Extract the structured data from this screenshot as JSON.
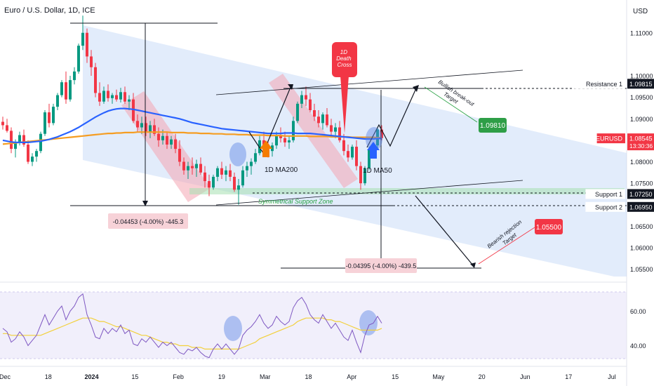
{
  "header": {
    "title": "Euro / U.S. Dollar, 1D, ICE",
    "currency": "USD"
  },
  "chart_data": {
    "type": "candlestick",
    "price_axis": {
      "ticks": [
        "1.11000",
        "1.10000",
        "1.09500",
        "1.09000",
        "1.08000",
        "1.07500",
        "1.06500",
        "1.06000",
        "1.05500"
      ],
      "range": [
        1.052,
        1.116
      ]
    },
    "rsi_axis": {
      "ticks": [
        "60.00",
        "40.00"
      ],
      "range": [
        28,
        76
      ]
    },
    "time_axis": {
      "labels": [
        "Dec",
        "18",
        "2024",
        "15",
        "Feb",
        "19",
        "Mar",
        "18",
        "Apr",
        "15",
        "May",
        "20",
        "Jun",
        "17",
        "Jul"
      ]
    },
    "price_labels": [
      {
        "label": "Resistance 1",
        "value": "1.09815",
        "style": "dark"
      },
      {
        "label": "EURUSD",
        "value": "1.08545",
        "extra": "13:30:36",
        "style": "red"
      },
      {
        "label": "Support 1",
        "value": "1.07250",
        "style": "dark"
      },
      {
        "label": "Support 2",
        "value": "1.06950",
        "style": "dark"
      }
    ],
    "annotations": {
      "death_cross": [
        "1D",
        "Death",
        "Cross"
      ],
      "ma200": "1D MA200",
      "ma50": "1D MA50",
      "support_zone": "Symmetrical Support Zone",
      "bullish_target_text": [
        "Bullish break-out",
        "Target"
      ],
      "bullish_target_value": "1.09810",
      "bearish_target_text": [
        "Bearish rejection",
        "Target"
      ],
      "bearish_target_value": "1.05500",
      "measure_left": "-0.04453 (-4.00%) -445.3",
      "measure_right": "-0.04395 (-4.00%) -439.5"
    },
    "series": {
      "candles_ohlc": [
        [
          1.0893,
          1.0905,
          1.0875,
          1.0885
        ],
        [
          1.0885,
          1.09,
          1.0868,
          1.0872
        ],
        [
          1.0872,
          1.088,
          1.082,
          1.083
        ],
        [
          1.083,
          1.0852,
          1.081,
          1.0845
        ],
        [
          1.0845,
          1.087,
          1.0838,
          1.0862
        ],
        [
          1.0862,
          1.0875,
          1.0835,
          1.084
        ],
        [
          1.084,
          1.085,
          1.0795,
          1.08
        ],
        [
          1.08,
          1.082,
          1.079,
          1.0812
        ],
        [
          1.0812,
          1.083,
          1.08,
          1.0825
        ],
        [
          1.0825,
          1.087,
          1.082,
          1.0865
        ],
        [
          1.0865,
          1.092,
          1.086,
          1.0915
        ],
        [
          1.0915,
          1.0935,
          1.088,
          1.089
        ],
        [
          1.089,
          1.0935,
          1.0885,
          1.0928
        ],
        [
          1.0928,
          1.096,
          1.092,
          1.0955
        ],
        [
          1.0955,
          1.099,
          1.095,
          1.0985
        ],
        [
          1.0985,
          1.101,
          1.0935,
          1.0945
        ],
        [
          1.0945,
          1.1,
          1.094,
          1.099
        ],
        [
          1.099,
          1.102,
          1.098,
          1.101
        ],
        [
          1.101,
          1.1075,
          1.1005,
          1.107
        ],
        [
          1.107,
          1.114,
          1.106,
          1.11
        ],
        [
          1.11,
          1.111,
          1.103,
          1.1045
        ],
        [
          1.1045,
          1.106,
          1.1,
          1.102
        ],
        [
          1.102,
          1.103,
          1.095,
          1.096
        ],
        [
          1.096,
          1.0985,
          1.093,
          1.094
        ],
        [
          1.094,
          1.0975,
          1.0935,
          1.0965
        ],
        [
          1.0965,
          1.098,
          1.094,
          1.0948
        ],
        [
          1.0948,
          1.096,
          1.0935,
          1.0955
        ],
        [
          1.0955,
          1.0968,
          1.094,
          1.0945
        ],
        [
          1.0945,
          1.0972,
          1.0938,
          1.0962
        ],
        [
          1.0962,
          1.0975,
          1.0935,
          1.094
        ],
        [
          1.094,
          1.0955,
          1.092,
          1.0945
        ],
        [
          1.0945,
          1.096,
          1.089,
          1.0895
        ],
        [
          1.0895,
          1.091,
          1.087,
          1.088
        ],
        [
          1.088,
          1.0905,
          1.0865,
          1.089
        ],
        [
          1.089,
          1.0905,
          1.086,
          1.087
        ],
        [
          1.087,
          1.0895,
          1.0855,
          1.0885
        ],
        [
          1.0885,
          1.09,
          1.086,
          1.0865
        ],
        [
          1.0865,
          1.088,
          1.0835,
          1.085
        ],
        [
          1.085,
          1.0875,
          1.084,
          1.086
        ],
        [
          1.086,
          1.087,
          1.083,
          1.084
        ],
        [
          1.084,
          1.086,
          1.083,
          1.0852
        ],
        [
          1.0852,
          1.0865,
          1.082,
          1.083
        ],
        [
          1.083,
          1.085,
          1.079,
          1.08
        ],
        [
          1.08,
          1.081,
          1.077,
          1.078
        ],
        [
          1.078,
          1.08,
          1.076,
          1.079
        ],
        [
          1.079,
          1.081,
          1.077,
          1.0785
        ],
        [
          1.0785,
          1.0805,
          1.0765,
          1.0795
        ],
        [
          1.0795,
          1.081,
          1.077,
          1.0775
        ],
        [
          1.0775,
          1.079,
          1.074,
          1.0755
        ],
        [
          1.0755,
          1.077,
          1.072,
          1.074
        ],
        [
          1.074,
          1.077,
          1.0735,
          1.0765
        ],
        [
          1.0765,
          1.079,
          1.0755,
          1.0785
        ],
        [
          1.0785,
          1.08,
          1.076,
          1.077
        ],
        [
          1.077,
          1.079,
          1.0755,
          1.078
        ],
        [
          1.078,
          1.0795,
          1.0755,
          1.0765
        ],
        [
          1.0765,
          1.0775,
          1.073,
          1.0735
        ],
        [
          1.0735,
          1.076,
          1.07,
          1.0745
        ],
        [
          1.0745,
          1.079,
          1.074,
          1.078
        ],
        [
          1.078,
          1.08,
          1.0765,
          1.079
        ],
        [
          1.079,
          1.0808,
          1.077,
          1.08
        ],
        [
          1.08,
          1.083,
          1.0795,
          1.082
        ],
        [
          1.082,
          1.086,
          1.0815,
          1.085
        ],
        [
          1.085,
          1.087,
          1.0835,
          1.084
        ],
        [
          1.084,
          1.085,
          1.081,
          1.0825
        ],
        [
          1.0825,
          1.0845,
          1.0812,
          1.0838
        ],
        [
          1.0838,
          1.087,
          1.083,
          1.086
        ],
        [
          1.086,
          1.088,
          1.0845,
          1.0855
        ],
        [
          1.0855,
          1.087,
          1.0835,
          1.0845
        ],
        [
          1.0845,
          1.086,
          1.083,
          1.085
        ],
        [
          1.085,
          1.0905,
          1.0845,
          1.0895
        ],
        [
          1.0895,
          1.094,
          1.089,
          1.0935
        ],
        [
          1.0935,
          1.0965,
          1.0925,
          1.0955
        ],
        [
          1.0955,
          1.0975,
          1.093,
          1.0945
        ],
        [
          1.0945,
          1.096,
          1.0915,
          1.092
        ],
        [
          1.092,
          1.0935,
          1.0895,
          1.0905
        ],
        [
          1.0905,
          1.092,
          1.088,
          1.089
        ],
        [
          1.089,
          1.0915,
          1.0875,
          1.091
        ],
        [
          1.091,
          1.0925,
          1.088,
          1.0885
        ],
        [
          1.0885,
          1.09,
          1.086,
          1.087
        ],
        [
          1.087,
          1.089,
          1.0855,
          1.088
        ],
        [
          1.088,
          1.0895,
          1.0845,
          1.085
        ],
        [
          1.085,
          1.0865,
          1.0815,
          1.0825
        ],
        [
          1.0825,
          1.084,
          1.08,
          1.081
        ],
        [
          1.081,
          1.084,
          1.0805,
          1.0835
        ],
        [
          1.0835,
          1.085,
          1.078,
          1.079
        ],
        [
          1.079,
          1.08,
          1.0735,
          1.075
        ],
        [
          1.075,
          1.079,
          1.0745,
          1.0785
        ],
        [
          1.0785,
          1.0835,
          1.078,
          1.083
        ],
        [
          1.083,
          1.0845,
          1.082,
          1.0838
        ],
        [
          1.0838,
          1.088,
          1.0832,
          1.0875
        ],
        [
          1.0875,
          1.0885,
          1.085,
          1.0855
        ]
      ],
      "ma50": [
        1.085,
        1.0848,
        1.0846,
        1.0845,
        1.0845,
        1.0845,
        1.0845,
        1.0846,
        1.0847,
        1.0848,
        1.085,
        1.0852,
        1.0855,
        1.0858,
        1.0862,
        1.0866,
        1.087,
        1.0875,
        1.088,
        1.0886,
        1.0892,
        1.0898,
        1.0904,
        1.0909,
        1.0914,
        1.0918,
        1.0921,
        1.0923,
        1.0924,
        1.0924,
        1.0923,
        1.0922,
        1.092,
        1.0918,
        1.0916,
        1.0914,
        1.0912,
        1.091,
        1.0908,
        1.0906,
        1.0904,
        1.0902,
        1.09,
        1.0897,
        1.0894,
        1.0891,
        1.0889,
        1.0887,
        1.0885,
        1.0883,
        1.0881,
        1.0879,
        1.0877,
        1.0876,
        1.0875,
        1.0874,
        1.0873,
        1.0872,
        1.0871,
        1.087,
        1.0869,
        1.0868,
        1.0867,
        1.0866,
        1.0866,
        1.0866,
        1.0866,
        1.0867,
        1.0867,
        1.0867,
        1.0866,
        1.0866,
        1.0866,
        1.0866,
        1.0865,
        1.0864,
        1.0863,
        1.0862,
        1.0861,
        1.086,
        1.0859,
        1.0858,
        1.0857,
        1.0856,
        1.0855,
        1.0854,
        1.0853,
        1.0853,
        1.0853,
        1.0854,
        1.0854
      ],
      "ma200": [
        1.0841,
        1.0842,
        1.0843,
        1.0844,
        1.0845,
        1.0846,
        1.0847,
        1.0848,
        1.0849,
        1.085,
        1.0851,
        1.0852,
        1.0853,
        1.0854,
        1.0855,
        1.0856,
        1.0857,
        1.0858,
        1.0859,
        1.086,
        1.0861,
        1.0862,
        1.0863,
        1.0864,
        1.0865,
        1.0866,
        1.0866,
        1.0867,
        1.0867,
        1.0868,
        1.0868,
        1.0868,
        1.0869,
        1.0869,
        1.0869,
        1.0869,
        1.0869,
        1.0869,
        1.0869,
        1.0869,
        1.0868,
        1.0868,
        1.0868,
        1.0868,
        1.0867,
        1.0867,
        1.0867,
        1.0866,
        1.0866,
        1.0866,
        1.0865,
        1.0865,
        1.0865,
        1.0864,
        1.0864,
        1.0864,
        1.0863,
        1.0863,
        1.0863,
        1.0862,
        1.0862,
        1.0862,
        1.0862,
        1.0861,
        1.0861,
        1.0861,
        1.0861,
        1.086,
        1.086,
        1.086,
        1.086,
        1.086,
        1.086,
        1.0859,
        1.0859,
        1.0859,
        1.0859,
        1.0859,
        1.0858,
        1.0858,
        1.0858,
        1.0858,
        1.0858,
        1.0857,
        1.0857,
        1.0857,
        1.0857,
        1.0857,
        1.0857,
        1.0856,
        1.0856
      ],
      "rsi": [
        50,
        48,
        42,
        44,
        48,
        45,
        40,
        43,
        46,
        52,
        58,
        52,
        56,
        60,
        63,
        55,
        60,
        63,
        68,
        70,
        58,
        52,
        45,
        44,
        50,
        47,
        50,
        48,
        52,
        47,
        49,
        41,
        40,
        44,
        42,
        45,
        42,
        39,
        42,
        40,
        42,
        39,
        36,
        35,
        38,
        37,
        39,
        36,
        34,
        33,
        38,
        41,
        38,
        41,
        38,
        35,
        38,
        46,
        49,
        51,
        54,
        58,
        53,
        50,
        52,
        57,
        54,
        52,
        54,
        62,
        66,
        68,
        64,
        58,
        55,
        53,
        58,
        54,
        50,
        53,
        49,
        45,
        43,
        49,
        42,
        36,
        46,
        52,
        53,
        57,
        53
      ],
      "rsi_ma": [
        47,
        47,
        46,
        46,
        46,
        46,
        46,
        46,
        46,
        46,
        47,
        48,
        49,
        50,
        51,
        52,
        53,
        54,
        55,
        56,
        56,
        56,
        55,
        54,
        54,
        53,
        52,
        51,
        51,
        50,
        49,
        48,
        47,
        46,
        46,
        45,
        44,
        43,
        42,
        42,
        41,
        41,
        40,
        40,
        40,
        39,
        39,
        39,
        38,
        38,
        38,
        38,
        38,
        38,
        38,
        38,
        38,
        39,
        40,
        41,
        42,
        44,
        45,
        46,
        47,
        48,
        49,
        50,
        51,
        52,
        54,
        55,
        56,
        56,
        56,
        56,
        56,
        55,
        55,
        54,
        54,
        53,
        52,
        51,
        50,
        49,
        49,
        49,
        49,
        49,
        50
      ]
    }
  }
}
